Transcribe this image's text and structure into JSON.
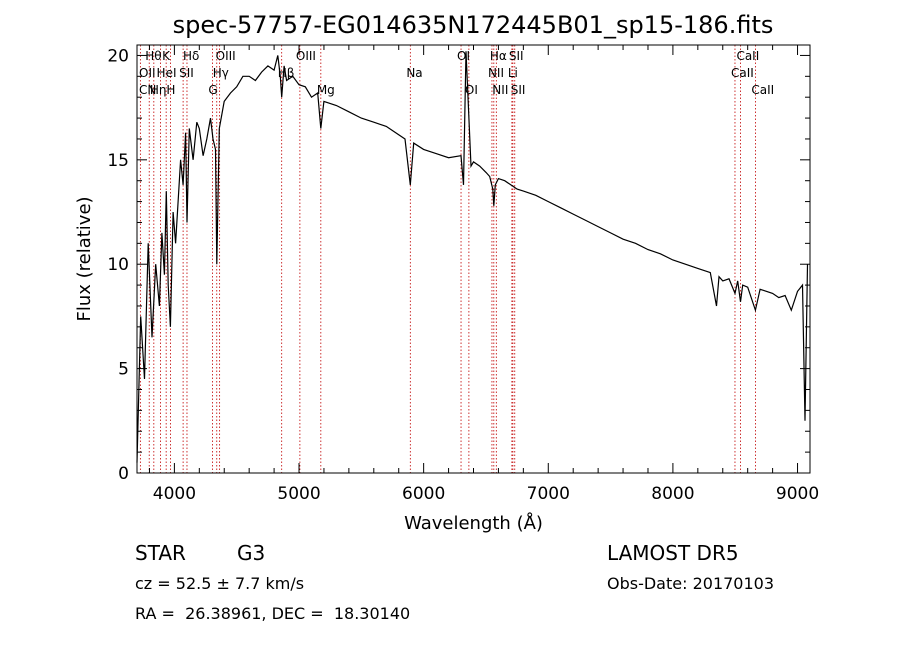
{
  "chart_data": {
    "type": "line",
    "title": "spec-57757-EG014635N172445B01_sp15-186.fits",
    "xlabel": "Wavelength (Å)",
    "ylabel": "Flux (relative)",
    "xlim": [
      3700,
      9100
    ],
    "ylim": [
      0,
      20.5
    ],
    "x_ticks": [
      4000,
      5000,
      6000,
      7000,
      8000,
      9000
    ],
    "y_ticks": [
      0,
      5,
      10,
      15,
      20
    ],
    "grid": false,
    "series": [
      {
        "color": "#000000",
        "x": [
          3700,
          3730,
          3760,
          3790,
          3820,
          3850,
          3880,
          3900,
          3920,
          3935,
          3950,
          3968,
          3990,
          4010,
          4030,
          4050,
          4070,
          4090,
          4101,
          4120,
          4150,
          4180,
          4200,
          4230,
          4260,
          4290,
          4310,
          4330,
          4340,
          4360,
          4400,
          4450,
          4500,
          4550,
          4600,
          4650,
          4700,
          4750,
          4800,
          4830,
          4850,
          4861,
          4880,
          4900,
          4950,
          5000,
          5050,
          5100,
          5150,
          5175,
          5200,
          5300,
          5400,
          5500,
          5600,
          5700,
          5800,
          5850,
          5893,
          5920,
          6000,
          6100,
          6200,
          6300,
          6320,
          6340,
          6380,
          6400,
          6450,
          6500,
          6530,
          6555,
          6563,
          6575,
          6600,
          6650,
          6700,
          6750,
          6800,
          6900,
          7000,
          7100,
          7200,
          7300,
          7400,
          7500,
          7600,
          7700,
          7800,
          7900,
          8000,
          8100,
          8200,
          8300,
          8350,
          8370,
          8400,
          8450,
          8498,
          8520,
          8542,
          8560,
          8600,
          8662,
          8700,
          8800,
          8850,
          8900,
          8950,
          9000,
          9040,
          9060,
          9080
        ],
        "y": [
          0.5,
          7.5,
          4.5,
          11.0,
          6.5,
          10.0,
          8.0,
          11.5,
          9.5,
          13.5,
          9.0,
          7.0,
          12.5,
          11.0,
          13.0,
          15.0,
          13.8,
          16.3,
          12.0,
          16.5,
          15.0,
          16.8,
          16.5,
          15.2,
          16.0,
          17.0,
          16.0,
          15.5,
          10.0,
          16.5,
          17.8,
          18.2,
          18.5,
          19.0,
          19.0,
          18.8,
          19.2,
          19.5,
          19.3,
          20.0,
          19.0,
          18.0,
          19.5,
          18.8,
          19.0,
          18.6,
          18.5,
          18.0,
          18.2,
          16.5,
          17.8,
          17.6,
          17.3,
          17.0,
          16.8,
          16.6,
          16.2,
          16.0,
          13.8,
          15.8,
          15.5,
          15.3,
          15.1,
          15.2,
          13.8,
          20.2,
          14.7,
          14.9,
          14.7,
          14.4,
          14.2,
          13.6,
          12.8,
          13.8,
          14.1,
          14.0,
          13.8,
          13.6,
          13.5,
          13.3,
          13.0,
          12.7,
          12.4,
          12.1,
          11.8,
          11.5,
          11.2,
          11.0,
          10.7,
          10.5,
          10.2,
          10.0,
          9.8,
          9.6,
          8.0,
          9.4,
          9.2,
          9.3,
          8.6,
          9.2,
          8.2,
          9.0,
          8.9,
          7.8,
          8.8,
          8.6,
          8.4,
          8.5,
          7.8,
          8.7,
          9.0,
          2.5,
          10.0
        ]
      }
    ],
    "lines": [
      {
        "name": "Hθ",
        "x": 3798,
        "row": 0
      },
      {
        "name": "OII",
        "x": 3727,
        "row": 1
      },
      {
        "name": "CN",
        "x": 3700,
        "row": 2
      },
      {
        "name": "K",
        "x": 3934,
        "row": 0
      },
      {
        "name": "HeI",
        "x": 3889,
        "row": 1
      },
      {
        "name": "Hη",
        "x": 3835,
        "row": 2
      },
      {
        "name": "Hδ",
        "x": 4101,
        "row": 0
      },
      {
        "name": "SII",
        "x": 4070,
        "row": 1
      },
      {
        "name": "H",
        "x": 3968,
        "row": 2
      },
      {
        "name": "OIII",
        "x": 4363,
        "row": 0
      },
      {
        "name": "Hγ",
        "x": 4340,
        "row": 1
      },
      {
        "name": "G",
        "x": 4305,
        "row": 2
      },
      {
        "name": "OIII",
        "x": 5007,
        "row": 0
      },
      {
        "name": "Hβ",
        "x": 4861,
        "row": 1
      },
      {
        "name": "Mg",
        "x": 5175,
        "row": 2
      },
      {
        "name": "Na",
        "x": 5893,
        "row": 1
      },
      {
        "name": "OI",
        "x": 6300,
        "row": 0
      },
      {
        "name": "OI",
        "x": 6363,
        "row": 2
      },
      {
        "name": "Hα",
        "x": 6563,
        "row": 0
      },
      {
        "name": "NII",
        "x": 6548,
        "row": 1
      },
      {
        "name": "NII",
        "x": 6583,
        "row": 2
      },
      {
        "name": "SII",
        "x": 6716,
        "row": 0
      },
      {
        "name": "Li",
        "x": 6708,
        "row": 1
      },
      {
        "name": "SII",
        "x": 6731,
        "row": 2
      },
      {
        "name": "CaII",
        "x": 8542,
        "row": 0
      },
      {
        "name": "CaII",
        "x": 8498,
        "row": 1
      },
      {
        "name": "CaII",
        "x": 8662,
        "row": 2
      }
    ]
  },
  "info": {
    "class": "STAR",
    "subclass": "G3",
    "survey": "LAMOST DR5",
    "cz": "cz = 52.5 ± 7.7 km/s",
    "obs_date": "Obs-Date: 20170103",
    "radec": "RA =  26.38961, DEC =  18.30140"
  }
}
